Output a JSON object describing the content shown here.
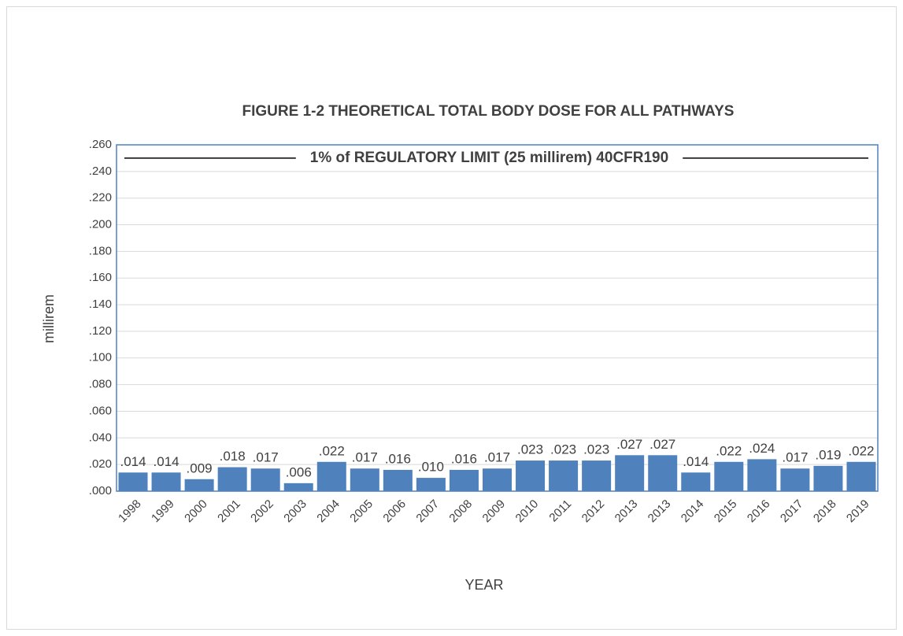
{
  "chart_data": {
    "type": "bar",
    "title": "FIGURE 1-2  THEORETICAL TOTAL BODY DOSE FOR ALL PATHWAYS",
    "x_label": "YEAR",
    "y_label": "millirem",
    "categories": [
      "1998",
      "1999",
      "2000",
      "2001",
      "2002",
      "2003",
      "2004",
      "2005",
      "2006",
      "2007",
      "2008",
      "2009",
      "2010",
      "2011",
      "2012",
      "2013",
      "2013",
      "2014",
      "2015",
      "2016",
      "2017",
      "2018",
      "2019"
    ],
    "values": [
      0.014,
      0.014,
      0.009,
      0.018,
      0.017,
      0.006,
      0.022,
      0.017,
      0.016,
      0.01,
      0.016,
      0.017,
      0.023,
      0.023,
      0.023,
      0.027,
      0.027,
      0.014,
      0.022,
      0.024,
      0.017,
      0.019,
      0.022
    ],
    "value_labels": [
      ".014",
      ".014",
      ".009",
      ".018",
      ".017",
      ".006",
      ".022",
      ".017",
      ".016",
      ".010",
      ".016",
      ".017",
      ".023",
      ".023",
      ".023",
      ".027",
      ".027",
      ".014",
      ".022",
      ".024",
      ".017",
      ".019",
      ".022"
    ],
    "color": "#4f81bd",
    "ylim": [
      0,
      0.26
    ],
    "yticks": [
      {
        "value": 0,
        "label": ".000"
      },
      {
        "value": 0.02,
        "label": ".020"
      },
      {
        "value": 0.04,
        "label": ".040"
      },
      {
        "value": 0.06,
        "label": ".060"
      },
      {
        "value": 0.08,
        "label": ".080"
      },
      {
        "value": 0.1,
        "label": ".100"
      },
      {
        "value": 0.12,
        "label": ".120"
      },
      {
        "value": 0.14,
        "label": ".140"
      },
      {
        "value": 0.16,
        "label": ".160"
      },
      {
        "value": 0.18,
        "label": ".180"
      },
      {
        "value": 0.2,
        "label": ".200"
      },
      {
        "value": 0.22,
        "label": ".220"
      },
      {
        "value": 0.24,
        "label": ".240"
      },
      {
        "value": 0.26,
        "label": ".260"
      }
    ],
    "grid": true,
    "reference_line": {
      "value": 0.25,
      "label": "1% of REGULATORY LIMIT (25 millirem) 40CFR190",
      "color": "#000000"
    }
  }
}
